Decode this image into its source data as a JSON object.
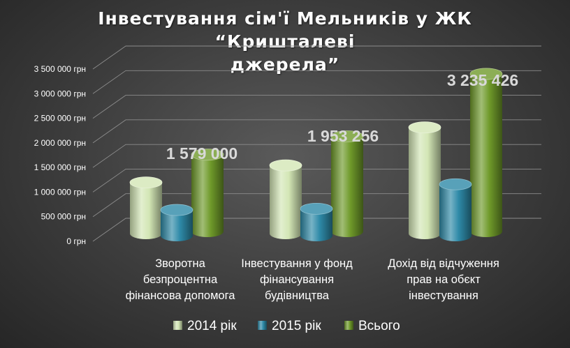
{
  "chart_data": {
    "type": "bar",
    "title": "Інвестування  сім'ї Мельників  у ЖК “Кришталеві джерела”",
    "title_lines": [
      "Інвестування  сім'ї Мельників  у ЖК “Кришталеві",
      "джерела”"
    ],
    "categories": [
      "Зворотна безпроцентна фінансова допомога",
      "Інвестування у фонд фінансування будівництва",
      "Дохід від відчуження прав на обєкт інвестування"
    ],
    "category_lines": [
      [
        "Зворотна",
        "безпроцентна",
        "фінансова допомога"
      ],
      [
        "Інвестування у фонд",
        "фінансування",
        "будівництва"
      ],
      [
        "Дохід від відчуження",
        "прав на обєкт",
        "інвестування"
      ]
    ],
    "series": [
      {
        "name": "2014 рік",
        "values": [
          1050000,
          1400000,
          2180000
        ],
        "color": "#d3e6b5"
      },
      {
        "name": "2015 рік",
        "values": [
          529000,
          553256,
          1055426
        ],
        "color": "#2e8aa8"
      },
      {
        "name": "Всього",
        "values": [
          1579000,
          1953256,
          3235426
        ],
        "color": "#6f9a2a"
      }
    ],
    "data_labels": [
      "1 579 000",
      "1 953 256",
      "3 235 426"
    ],
    "yticks": [
      0,
      500000,
      1000000,
      1500000,
      2000000,
      2500000,
      3000000,
      3500000
    ],
    "ytick_labels": [
      "0 грн",
      "500 000 грн",
      "1 000 000 грн",
      "1 500 000 грн",
      "2 000 000 грн",
      "2 500 000 грн",
      "3 000 000 грн",
      "3 500 000 грн"
    ],
    "ylim": [
      0,
      3500000
    ],
    "xlabel": "",
    "ylabel": "",
    "legend_position": "bottom",
    "grid": true
  }
}
